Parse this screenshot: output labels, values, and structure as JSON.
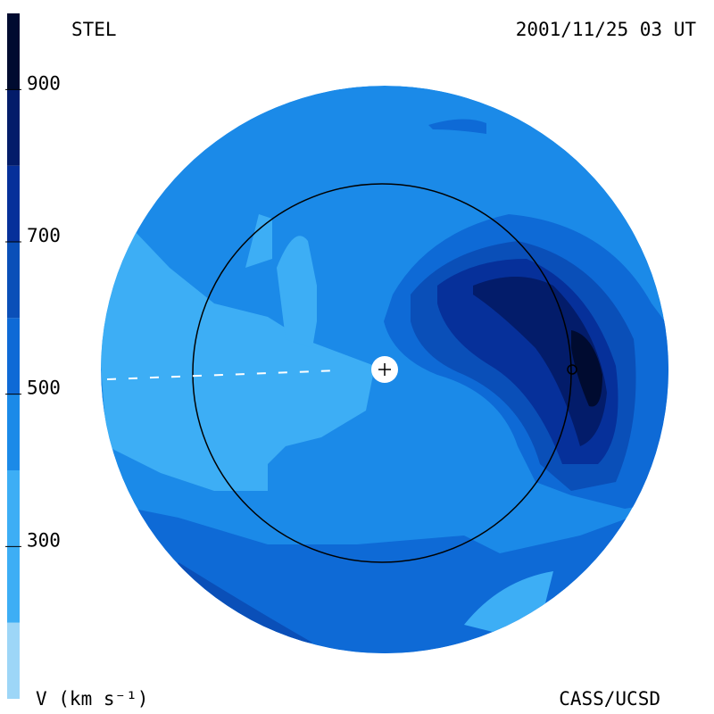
{
  "header": {
    "label": "STEL",
    "timestamp": "2001/11/25 03 UT"
  },
  "footer": {
    "credit": "CASS/UCSD"
  },
  "colorbar": {
    "label": "V (km s⁻¹)",
    "lim": [
      100,
      1000
    ],
    "ticks": [
      300,
      500,
      700,
      900
    ],
    "levels": [
      100,
      200,
      300,
      400,
      500,
      600,
      700,
      800,
      900,
      1000
    ],
    "colors": [
      "#9dd6f7",
      "#3daef5",
      "#3daef5",
      "#1b8ae8",
      "#0e6ad6",
      "#0a4fb8",
      "#06309a",
      "#031c6a",
      "#000b30"
    ]
  }
}
